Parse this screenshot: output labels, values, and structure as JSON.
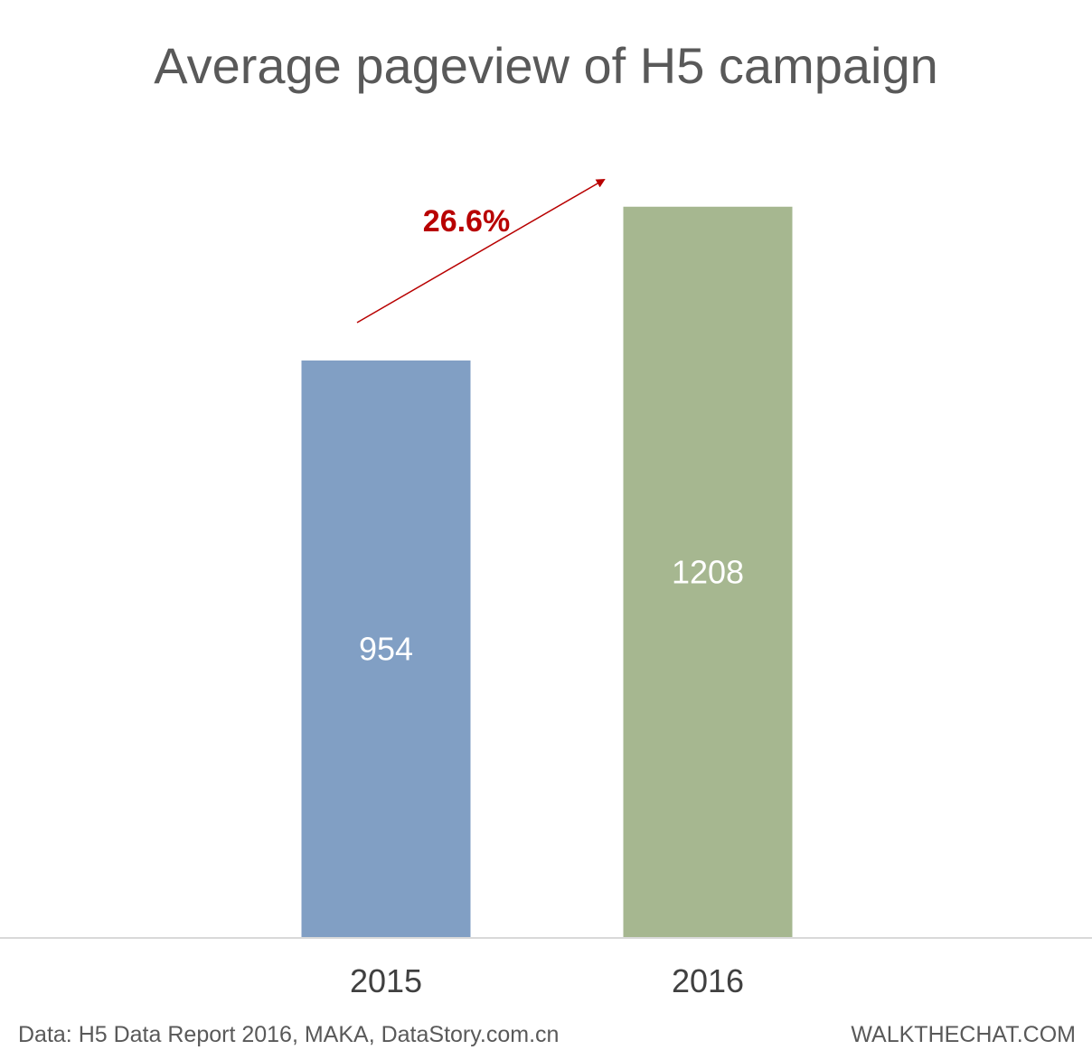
{
  "chart_data": {
    "type": "bar",
    "title": "Average pageview of H5 campaign",
    "categories": [
      "2015",
      "2016"
    ],
    "values": [
      954,
      1208
    ],
    "data_labels": [
      "954",
      "1208"
    ],
    "bar_colors": [
      "#819fc4",
      "#a6b790"
    ],
    "ylim": [
      0,
      1400
    ],
    "grid": false,
    "annotations": [
      {
        "text": "26.6%",
        "type": "arrow",
        "from": "2015",
        "to": "2016",
        "color": "#b80000"
      }
    ]
  },
  "footer": {
    "source": "Data: H5 Data Report 2016, MAKA, DataStory.com.cn",
    "brand": "WALKTHECHAT.COM"
  },
  "colors": {
    "title": "#595959",
    "axis_line": "#d9d9d9",
    "tick_text": "#404040",
    "label_text": "#ffffff",
    "annotation": "#b80000"
  }
}
